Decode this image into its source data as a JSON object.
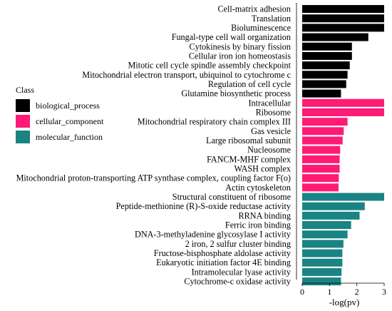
{
  "chart_data": {
    "type": "bar",
    "orientation": "horizontal",
    "xlabel": "-log(pv)",
    "ylabel": "",
    "xlim": [
      0,
      3
    ],
    "xticks": [
      0,
      1,
      2,
      3
    ],
    "grid": false,
    "legend": {
      "title": "Class",
      "position": "left",
      "entries": [
        {
          "label": "biological_process",
          "color": "#000000"
        },
        {
          "label": "cellular_component",
          "color": "#FF1A75"
        },
        {
          "label": "molecular_function",
          "color": "#1A8383"
        }
      ]
    },
    "categories": [
      "Cell-matrix adhesion",
      "Translation",
      "Bioluminescence",
      "Fungal-type cell wall organization",
      "Cytokinesis by binary fission",
      "Cellular iron ion homeostasis",
      "Mitotic cell cycle spindle assembly checkpoint",
      "Mitochondrial electron transport, ubiquinol to cytochrome c",
      "Regulation of cell cycle",
      "Glutamine biosynthetic process",
      "Intracellular",
      "Ribosome",
      "Mitochondrial respiratory chain complex III",
      "Gas vesicle",
      "Large ribosomal subunit",
      "Nucleosome",
      "FANCM-MHF complex",
      "WASH complex",
      "Mitochondrial proton-transporting ATP synthase complex, coupling factor F(o)",
      "Actin cytoskeleton",
      "Structural constituent of ribosome",
      "Peptide-methionine (R)-S-oxide reductase activity",
      "RRNA binding",
      "Ferric iron binding",
      "DNA-3-methyladenine glycosylase I activity",
      "2 iron, 2 sulfur cluster binding",
      "Fructose-bisphosphate aldolase activity",
      "Eukaryotic initiation factor 4E binding",
      "Intramolecular lyase activity",
      "Cytochrome-c oxidase activity"
    ],
    "values": [
      3.0,
      3.0,
      3.0,
      2.42,
      1.82,
      1.82,
      1.74,
      1.66,
      1.61,
      1.42,
      3.0,
      3.0,
      1.66,
      1.52,
      1.48,
      1.39,
      1.37,
      1.37,
      1.34,
      1.33,
      3.0,
      2.29,
      2.1,
      1.79,
      1.66,
      1.51,
      1.47,
      1.47,
      1.44,
      1.42
    ],
    "classes": [
      "biological_process",
      "biological_process",
      "biological_process",
      "biological_process",
      "biological_process",
      "biological_process",
      "biological_process",
      "biological_process",
      "biological_process",
      "biological_process",
      "cellular_component",
      "cellular_component",
      "cellular_component",
      "cellular_component",
      "cellular_component",
      "cellular_component",
      "cellular_component",
      "cellular_component",
      "cellular_component",
      "cellular_component",
      "molecular_function",
      "molecular_function",
      "molecular_function",
      "molecular_function",
      "molecular_function",
      "molecular_function",
      "molecular_function",
      "molecular_function",
      "molecular_function",
      "molecular_function"
    ]
  }
}
